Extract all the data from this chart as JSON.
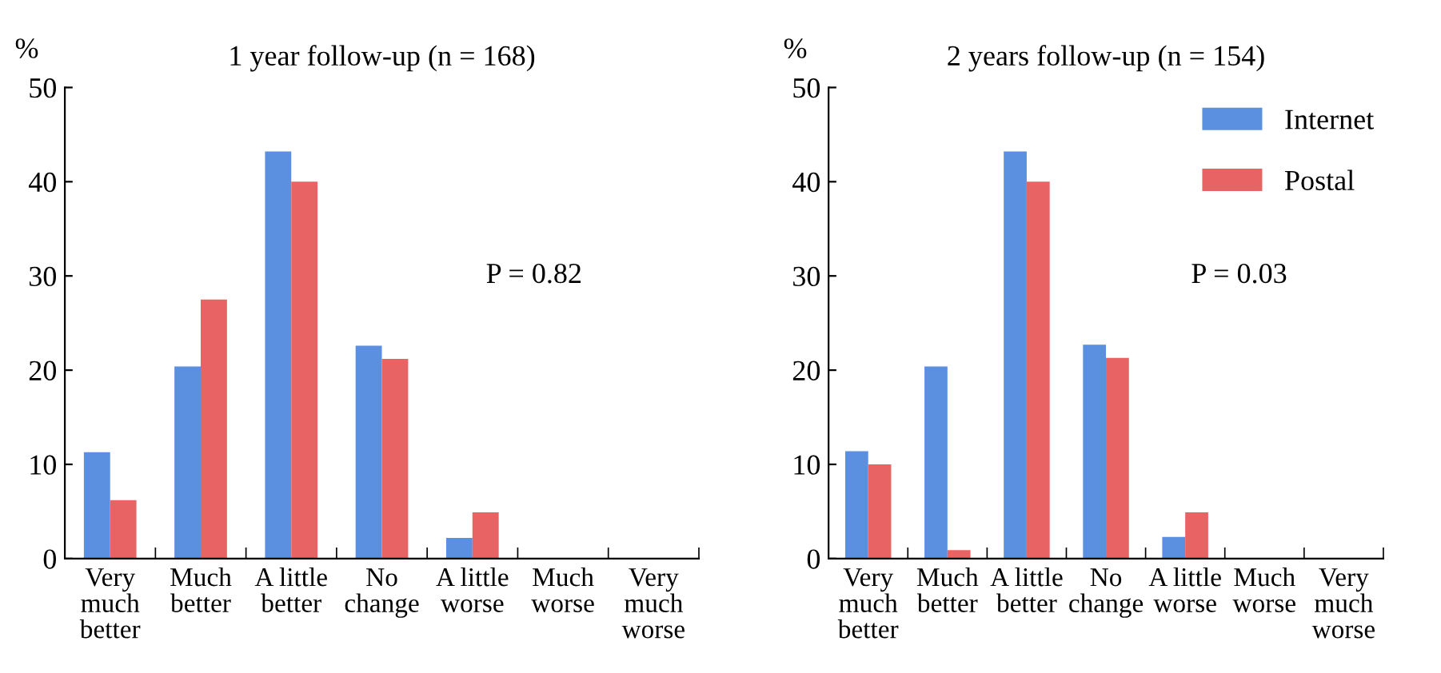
{
  "chart_data": [
    {
      "type": "bar",
      "title": "1 year follow-up (n = 168)",
      "ylabel": "%",
      "categories": [
        "Very\nmuch\nbetter",
        "Much\nbetter",
        "A little\nbetter",
        "No\nchange",
        "A little\nworse",
        "Much\nworse",
        "Very\nmuch\nworse"
      ],
      "series": [
        {
          "color": "#5b8fe0",
          "values": [
            11.3,
            20.4,
            43.2,
            22.6,
            2.2,
            0,
            0
          ]
        },
        {
          "color": "#e86464",
          "values": [
            6.2,
            27.5,
            40.0,
            21.2,
            4.9,
            0,
            0
          ]
        }
      ],
      "ylim": [
        0,
        50
      ],
      "yticks": [
        0,
        10,
        20,
        30,
        40,
        50
      ],
      "grid": false,
      "legend": false,
      "annotations": [
        "P = 0.82"
      ]
    },
    {
      "type": "bar",
      "title": "2 years follow-up (n = 154)",
      "ylabel": "%",
      "categories": [
        "Very\nmuch\nbetter",
        "Much\nbetter",
        "A little\nbetter",
        "No\nchange",
        "A little\nworse",
        "Much\nworse",
        "Very\nmuch\nworse"
      ],
      "series": [
        {
          "name": "Internet",
          "color": "#5b8fe0",
          "values": [
            11.4,
            20.4,
            43.2,
            22.7,
            2.3,
            0,
            0
          ]
        },
        {
          "name": "Postal",
          "color": "#e86464",
          "values": [
            10.0,
            0.9,
            40.0,
            21.3,
            4.9,
            0,
            0
          ]
        }
      ],
      "ylim": [
        0,
        50
      ],
      "yticks": [
        0,
        10,
        20,
        30,
        40,
        50
      ],
      "grid": false,
      "legend": "top right",
      "annotations": [
        "P = 0.03"
      ]
    }
  ]
}
